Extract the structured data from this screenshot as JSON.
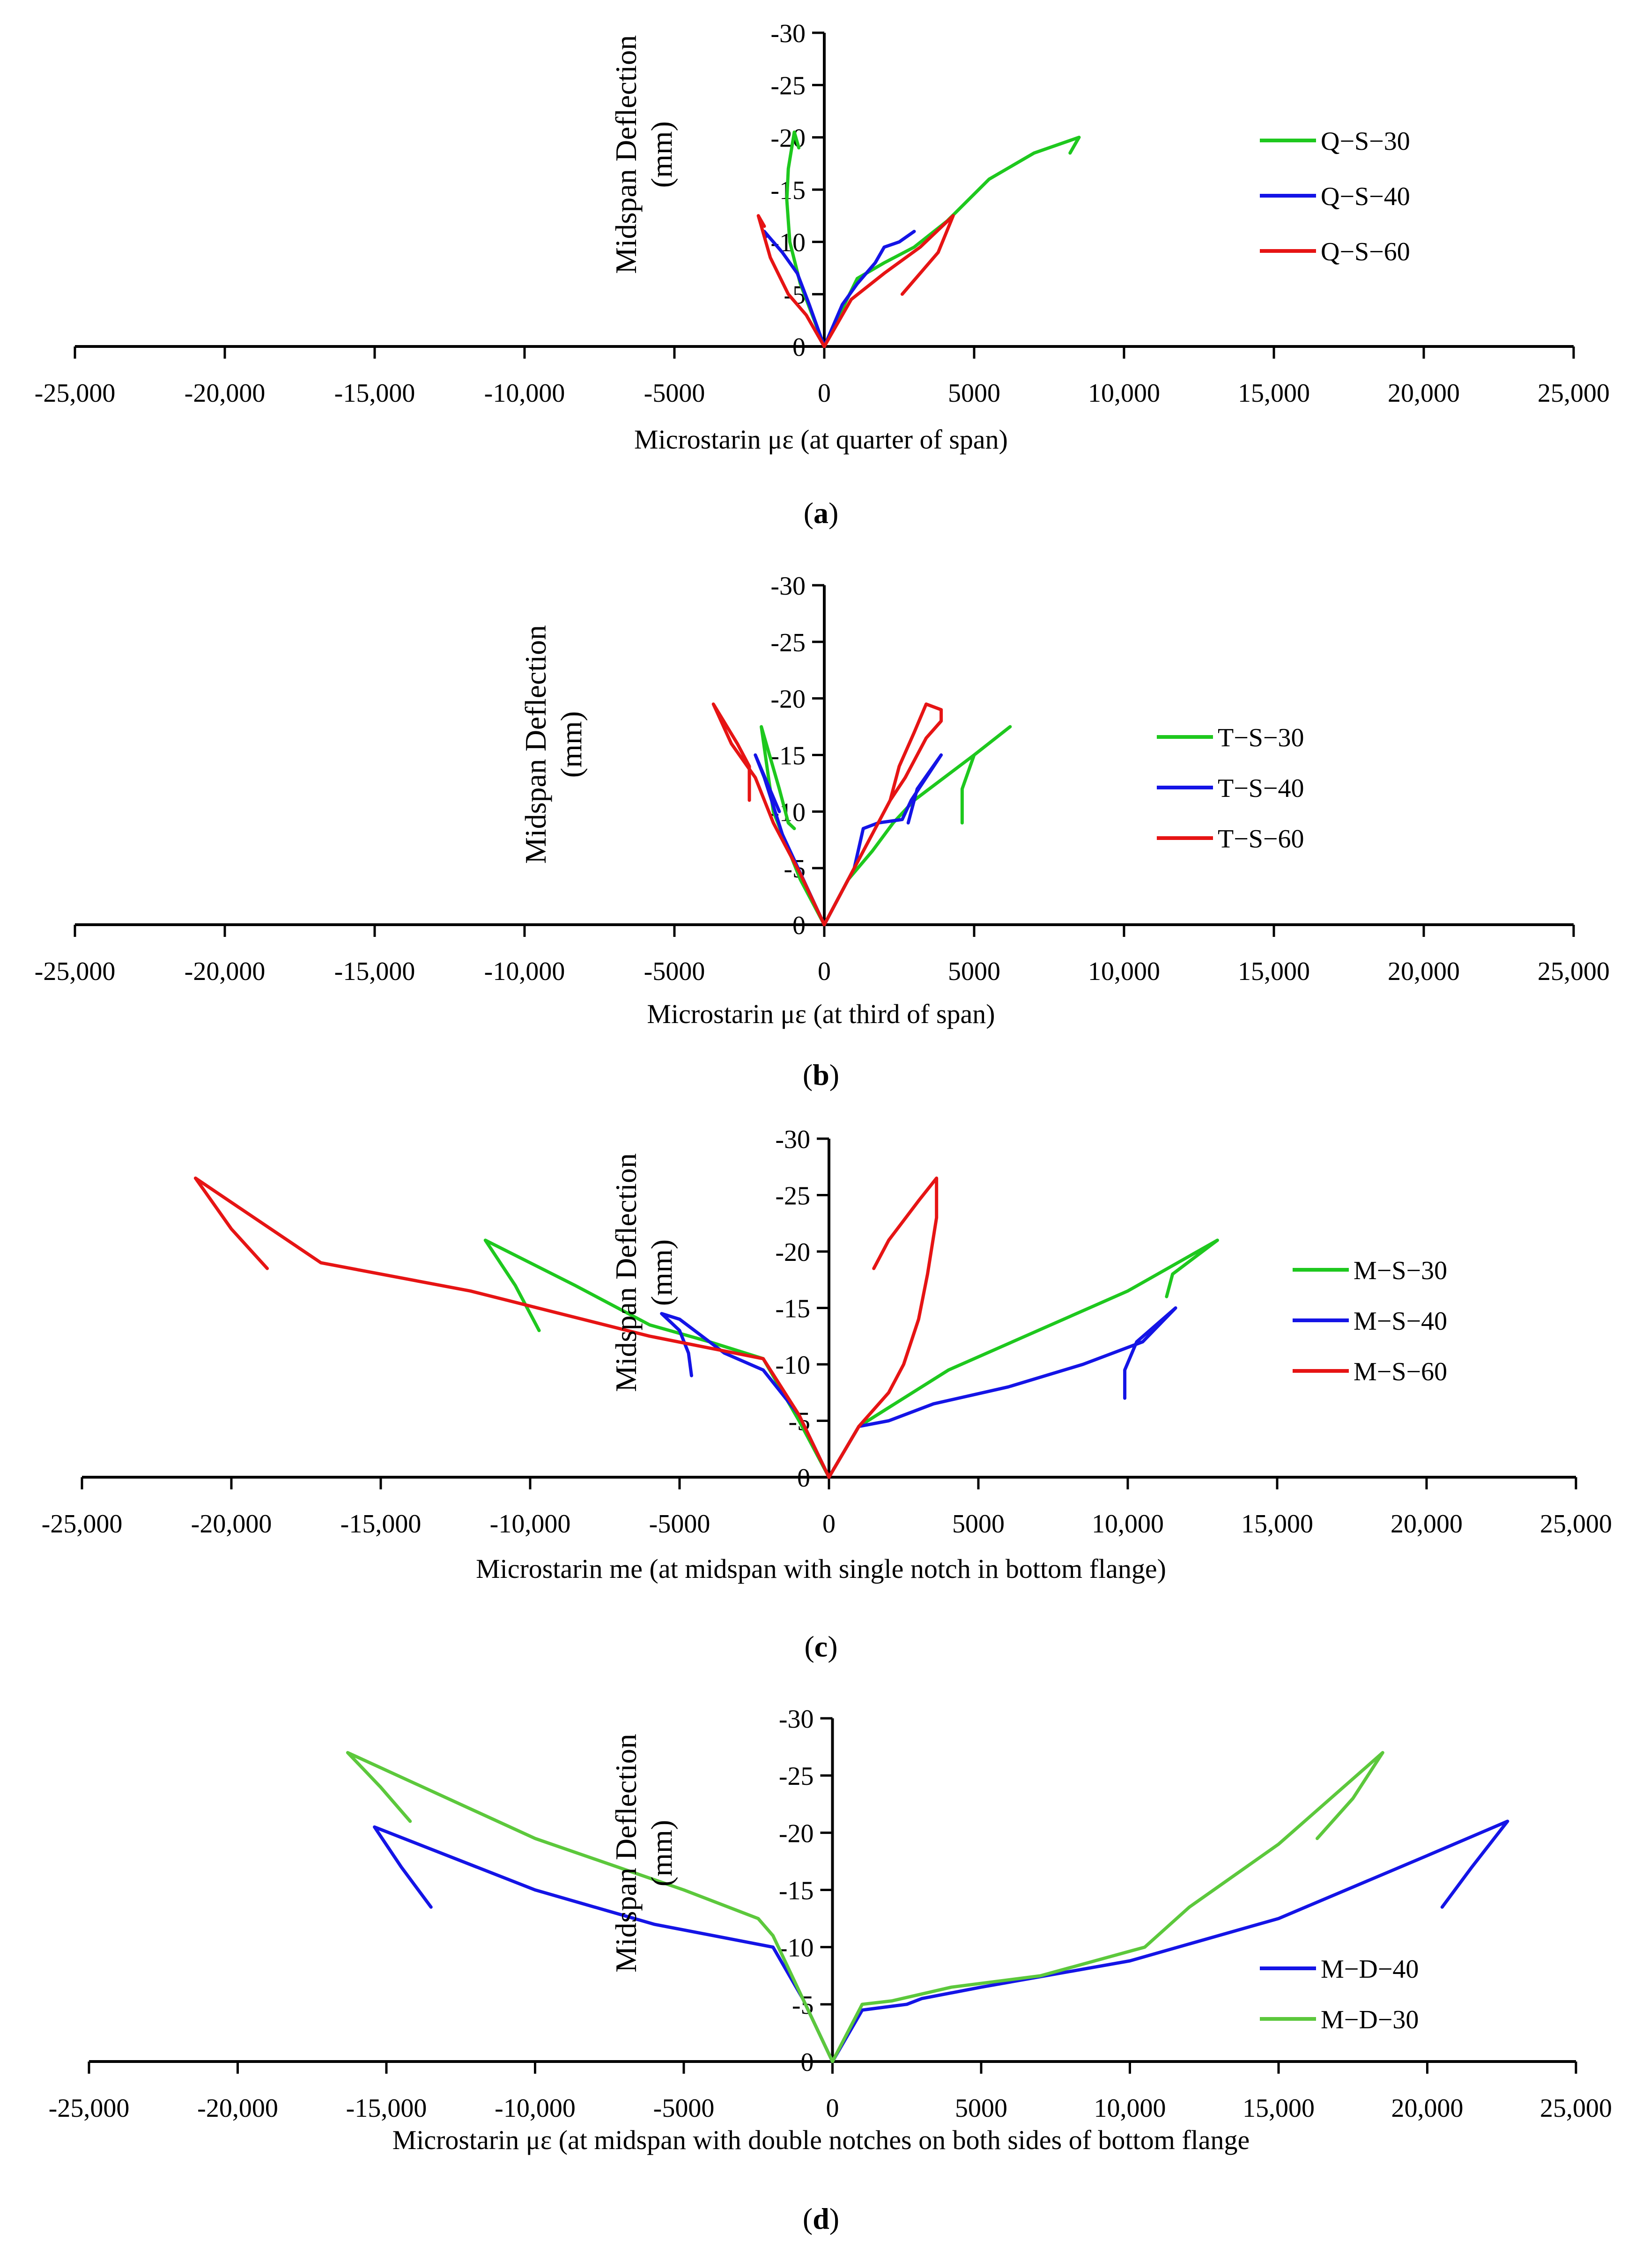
{
  "chart_data": [
    {
      "panel": "(a)",
      "caption": {
        "open": "(",
        "letter": "a",
        "close": ")"
      },
      "type": "line",
      "xlabel": "Microstarin με (at quarter of span)",
      "ylabel": [
        "Midspan Deflection",
        "(mm)"
      ],
      "xlim": [
        -25000,
        25000
      ],
      "ylim": [
        0,
        -30
      ],
      "xticks": [
        -25000,
        -20000,
        -15000,
        -10000,
        -5000,
        0,
        5000,
        10000,
        15000,
        20000,
        25000
      ],
      "xticklabels": [
        "-25,000",
        "-20,000",
        "-15,000",
        "-10,000",
        "-5000",
        "0",
        "5000",
        "10,000",
        "15,000",
        "20,000",
        "25,000"
      ],
      "yticks": [
        -30,
        -25,
        -20,
        -15,
        -10,
        -5,
        0
      ],
      "yticklabels": [
        "-30",
        "-25",
        "-20",
        "-15",
        "-10",
        "-5",
        "0"
      ],
      "legend_position": "right",
      "series": [
        {
          "name": "Q−S−30",
          "color": "#1ec81e",
          "branches": [
            {
              "x": [
                0,
                500,
                1100,
                2000,
                3000,
                4100,
                5500,
                7000,
                8500,
                8200
              ],
              "y": [
                0,
                -3,
                -6.5,
                -8,
                -9.5,
                -12,
                -16,
                -18.5,
                -20,
                -18.5
              ]
            },
            {
              "x": [
                0,
                -800,
                -1150,
                -1250,
                -1200,
                -1000,
                -850
              ],
              "y": [
                0,
                -6,
                -10,
                -14,
                -17,
                -20.5,
                -19
              ]
            }
          ]
        },
        {
          "name": "Q−S−40",
          "color": "#1414e6",
          "branches": [
            {
              "x": [
                0,
                600,
                1100,
                1700,
                2000,
                2500,
                3000
              ],
              "y": [
                0,
                -4,
                -6,
                -8,
                -9.5,
                -10,
                -11
              ]
            },
            {
              "x": [
                0,
                -500,
                -900,
                -1400,
                -2000,
                -1950
              ],
              "y": [
                0,
                -4,
                -7,
                -9,
                -11,
                -10.5
              ]
            }
          ]
        },
        {
          "name": "Q−S−60",
          "color": "#e61414",
          "branches": [
            {
              "x": [
                0,
                900,
                2000,
                3200,
                4300,
                3800,
                2600
              ],
              "y": [
                0,
                -4.5,
                -7,
                -9.5,
                -12.5,
                -9,
                -5
              ]
            },
            {
              "x": [
                0,
                -600,
                -1200,
                -1800,
                -2200,
                -2000
              ],
              "y": [
                0,
                -3,
                -5,
                -8.5,
                -12.5,
                -11.5
              ]
            }
          ]
        }
      ]
    },
    {
      "panel": "(b)",
      "caption": {
        "open": "(",
        "letter": "b",
        "close": ")"
      },
      "type": "line",
      "xlabel": "Microstarin με (at third of span)",
      "ylabel": [
        "Midspan Deflection",
        "(mm)"
      ],
      "xlim": [
        -25000,
        25000
      ],
      "ylim": [
        0,
        -30
      ],
      "xticks": [
        -25000,
        -20000,
        -15000,
        -10000,
        -5000,
        0,
        5000,
        10000,
        15000,
        20000,
        25000
      ],
      "xticklabels": [
        "-25,000",
        "-20,000",
        "-15,000",
        "-10,000",
        "-5000",
        "0",
        "5000",
        "10,000",
        "15,000",
        "20,000",
        "25,000"
      ],
      "yticks": [
        -30,
        -25,
        -20,
        -15,
        -10,
        -5,
        0
      ],
      "yticklabels": [
        "-30",
        "-25",
        "-20",
        "-15",
        "-10",
        "-5",
        "0"
      ],
      "legend_position": "right",
      "series": [
        {
          "name": "T−S−30",
          "color": "#1ec81e",
          "branches": [
            {
              "x": [
                0,
                800,
                1600,
                2300,
                3000,
                4000,
                5000,
                6200,
                5000,
                4600,
                4600
              ],
              "y": [
                0,
                -4,
                -6.5,
                -9,
                -11,
                -13,
                -15,
                -17.5,
                -15,
                -12,
                -9
              ]
            },
            {
              "x": [
                0,
                -800,
                -1700,
                -2100,
                -1500,
                -1200,
                -1000
              ],
              "y": [
                0,
                -4,
                -10,
                -17.5,
                -12,
                -9,
                -8.5
              ]
            }
          ]
        },
        {
          "name": "T−S−40",
          "color": "#1414e6",
          "branches": [
            {
              "x": [
                0,
                600,
                1000,
                1300,
                1800,
                2600,
                2900,
                3400,
                3900,
                3100,
                2800
              ],
              "y": [
                0,
                -3,
                -5,
                -8.5,
                -9,
                -9.3,
                -11,
                -13,
                -15,
                -12,
                -9
              ]
            },
            {
              "x": [
                0,
                -700,
                -1400,
                -2000,
                -2300,
                -1500
              ],
              "y": [
                0,
                -4,
                -8,
                -13,
                -15,
                -10
              ]
            }
          ]
        },
        {
          "name": "T−S−60",
          "color": "#e61414",
          "branches": [
            {
              "x": [
                0,
                800,
                1600,
                2200,
                2700,
                3100,
                3400,
                3900,
                3900,
                3400,
                3000,
                2500,
                2200
              ],
              "y": [
                0,
                -4,
                -8,
                -11,
                -13,
                -15,
                -16.5,
                -18,
                -19,
                -19.5,
                -17,
                -14,
                -11
              ]
            },
            {
              "x": [
                0,
                -800,
                -1700,
                -2300,
                -3100,
                -3700,
                -2900,
                -2500,
                -2500
              ],
              "y": [
                0,
                -4.5,
                -9,
                -13,
                -16,
                -19.5,
                -16,
                -14,
                -11
              ]
            }
          ]
        }
      ]
    },
    {
      "panel": "(c)",
      "caption": {
        "open": "(",
        "letter": "c",
        "close": ")"
      },
      "type": "line",
      "xlabel": "Microstarin me (at midspan with single notch in bottom flange)",
      "ylabel": [
        "Midspan Deflection",
        "(mm)"
      ],
      "xlim": [
        -25000,
        25000
      ],
      "ylim": [
        0,
        -30
      ],
      "xticks": [
        -25000,
        -20000,
        -15000,
        -10000,
        -5000,
        0,
        5000,
        10000,
        15000,
        20000,
        25000
      ],
      "xticklabels": [
        "-25,000",
        "-20,000",
        "-15,000",
        "-10,000",
        "-5000",
        "0",
        "5000",
        "10,000",
        "15,000",
        "20,000",
        "25,000"
      ],
      "yticks": [
        -30,
        -25,
        -20,
        -15,
        -10,
        -5,
        0
      ],
      "yticklabels": [
        "-30",
        "-25",
        "-20",
        "-15",
        "-10",
        "-5",
        "0"
      ],
      "legend_position": "right",
      "series": [
        {
          "name": "M−S−30",
          "color": "#1ec81e",
          "branches": [
            {
              "x": [
                0,
                1000,
                2200,
                4000,
                7000,
                10000,
                13000,
                11500,
                11300
              ],
              "y": [
                0,
                -4.5,
                -6.5,
                -9.5,
                -13,
                -16.5,
                -21,
                -18,
                -16
              ]
            },
            {
              "x": [
                0,
                -1000,
                -2200,
                -4000,
                -6000,
                -8500,
                -11500,
                -10500,
                -9700
              ],
              "y": [
                0,
                -5,
                -10.5,
                -12,
                -13.5,
                -17,
                -21,
                -17,
                -13
              ]
            }
          ]
        },
        {
          "name": "M−S−40",
          "color": "#1414e6",
          "branches": [
            {
              "x": [
                0,
                1000,
                2000,
                3500,
                6000,
                8500,
                10500,
                11600,
                10300,
                9900,
                9900
              ],
              "y": [
                0,
                -4.5,
                -5,
                -6.5,
                -8,
                -10,
                -12,
                -15,
                -12,
                -9.5,
                -7
              ]
            },
            {
              "x": [
                0,
                -1000,
                -2200,
                -3500,
                -5000,
                -5600,
                -5000,
                -4700,
                -4600
              ],
              "y": [
                0,
                -5.5,
                -9.5,
                -11,
                -14,
                -14.5,
                -13,
                -11,
                -9
              ]
            }
          ]
        },
        {
          "name": "M−S−60",
          "color": "#e61414",
          "branches": [
            {
              "x": [
                0,
                1000,
                2000,
                2500,
                3000,
                3300,
                3600,
                3600,
                3000,
                2000,
                1500
              ],
              "y": [
                0,
                -4.5,
                -7.5,
                -10,
                -14,
                -18,
                -23,
                -26.5,
                -24.5,
                -21,
                -18.5
              ]
            },
            {
              "x": [
                0,
                -1000,
                -2200,
                -6000,
                -12000,
                -17000,
                -21200,
                -20000,
                -18800
              ],
              "y": [
                0,
                -5.5,
                -10.5,
                -12.5,
                -16.5,
                -19,
                -26.5,
                -22,
                -18.5
              ]
            }
          ]
        }
      ]
    },
    {
      "panel": "(d)",
      "caption": {
        "open": "(",
        "letter": "d",
        "close": ")"
      },
      "type": "line",
      "xlabel": "Microstarin με (at midspan with double notches on both sides of bottom flange",
      "ylabel": [
        "Midspan Deflection",
        "(mm)"
      ],
      "xlim": [
        -25000,
        25000
      ],
      "ylim": [
        0,
        -30
      ],
      "xticks": [
        -25000,
        -20000,
        -15000,
        -10000,
        -5000,
        0,
        5000,
        10000,
        15000,
        20000,
        25000
      ],
      "xticklabels": [
        "-25,000",
        "-20,000",
        "-15,000",
        "-10,000",
        "-5000",
        "0",
        "5000",
        "10,000",
        "15,000",
        "20,000",
        "25,000"
      ],
      "yticks": [
        -30,
        -25,
        -20,
        -15,
        -10,
        -5,
        0
      ],
      "yticklabels": [
        "-30",
        "-25",
        "-20",
        "-15",
        "-10",
        "-5",
        "0"
      ],
      "legend_position": "bottom-right",
      "series": [
        {
          "name": "M−D−40",
          "color": "#1414e6",
          "branches": [
            {
              "x": [
                0,
                1000,
                2500,
                3000,
                5000,
                10000,
                15000,
                20000,
                22700,
                21500,
                20500
              ],
              "y": [
                0,
                -4.5,
                -5,
                -5.5,
                -6.5,
                -8.8,
                -12.5,
                -18,
                -21,
                -17,
                -13.5
              ]
            },
            {
              "x": [
                0,
                -1000,
                -2000,
                -4000,
                -6000,
                -10000,
                -15400,
                -14500,
                -13500
              ],
              "y": [
                0,
                -5.5,
                -10,
                -11,
                -12,
                -15,
                -20.5,
                -17,
                -13.5
              ]
            }
          ]
        },
        {
          "name": "M−D−30",
          "color": "#5cc83c",
          "branches": [
            {
              "x": [
                0,
                1000,
                2000,
                4000,
                7000,
                10500,
                12000,
                15000,
                18500,
                17500,
                16300
              ],
              "y": [
                0,
                -5,
                -5.3,
                -6.5,
                -7.5,
                -10,
                -13.5,
                -19,
                -27,
                -23,
                -19.5
              ]
            },
            {
              "x": [
                0,
                -1000,
                -2000,
                -2500,
                -5000,
                -10000,
                -16300,
                -15200,
                -14200
              ],
              "y": [
                0,
                -5.5,
                -11,
                -12.5,
                -15,
                -19.5,
                -27,
                -24,
                -21
              ]
            }
          ]
        }
      ]
    }
  ]
}
